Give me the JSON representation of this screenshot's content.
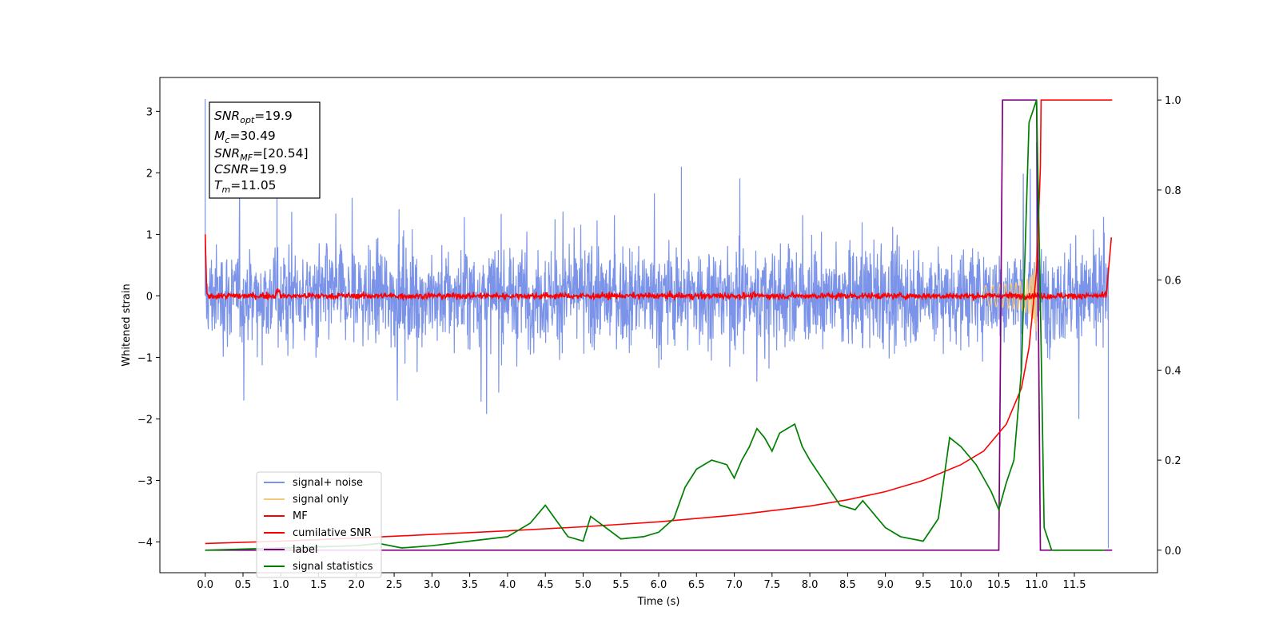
{
  "chart_data": {
    "type": "line",
    "xlabel": "Time (s)",
    "ylabel": "Whitened strain",
    "xlim": [
      -0.6,
      12.6
    ],
    "ylim_left": [
      -4.5,
      3.55
    ],
    "ylim_right": [
      -0.05,
      1.05
    ],
    "x_ticks": [
      "0.0",
      "0.5",
      "1.0",
      "1.5",
      "2.0",
      "2.5",
      "3.0",
      "3.5",
      "4.0",
      "4.5",
      "5.0",
      "5.5",
      "6.0",
      "6.5",
      "7.0",
      "7.5",
      "8.0",
      "8.5",
      "9.0",
      "9.5",
      "10.0",
      "10.5",
      "11.0",
      "11.5"
    ],
    "y_ticks_left": [
      "3",
      "2",
      "1",
      "0",
      "−1",
      "−2",
      "−3",
      "−4"
    ],
    "y_ticks_right": [
      "1.0",
      "0.8",
      "0.6",
      "0.4",
      "0.2",
      "0.0"
    ],
    "legend_position": "lower-left",
    "annotation": {
      "snr_opt": {
        "symbol": "SNR",
        "sub": "opt",
        "value": "=19.9"
      },
      "mc": {
        "symbol": "M",
        "sub": "c",
        "value": "=30.49"
      },
      "snr_mf": {
        "symbol": "SNR",
        "sub": "MF",
        "value": "=[20.54]"
      },
      "csnr": {
        "symbol": "CSNR",
        "sub": "",
        "value": "=19.9"
      },
      "tm": {
        "symbol": "T",
        "sub": "m",
        "value": "=11.05"
      }
    },
    "series": [
      {
        "name": "signal+ noise",
        "axis": "left",
        "color": "#7b93e8",
        "style": "noise band",
        "typical_range": [
          -1.3,
          1.3
        ],
        "peaks": [
          [
            0.0,
            3.2
          ],
          [
            0.95,
            1.9
          ],
          [
            6.3,
            2.1
          ],
          [
            11.0,
            2.5
          ],
          [
            11.95,
            -4.1
          ]
        ]
      },
      {
        "name": "signal only",
        "axis": "left",
        "color": "#f5c97a",
        "style": "chirp",
        "chirp_start": 10.3,
        "merger": 11.0,
        "peak_amplitude": 0.65
      },
      {
        "name": "MF",
        "axis": "left",
        "color": "#ff0000",
        "style": "noise near zero",
        "x": [
          0.0,
          0.02,
          0.95,
          1.0,
          11.93,
          11.99
        ],
        "y": [
          1.0,
          0.05,
          0.22,
          0.05,
          0.0,
          0.95
        ]
      },
      {
        "name": "cumilative SNR",
        "axis": "right",
        "color": "#ff0000",
        "x": [
          0.0,
          1.0,
          2.0,
          3.0,
          4.0,
          5.0,
          6.0,
          7.0,
          8.0,
          8.5,
          9.0,
          9.5,
          10.0,
          10.3,
          10.6,
          10.8,
          10.9,
          11.0,
          11.05,
          11.06,
          12.0
        ],
        "y": [
          0.015,
          0.02,
          0.027,
          0.035,
          0.043,
          0.052,
          0.063,
          0.078,
          0.098,
          0.112,
          0.13,
          0.155,
          0.19,
          0.22,
          0.28,
          0.36,
          0.45,
          0.62,
          0.85,
          1.0,
          1.0
        ]
      },
      {
        "name": "label",
        "axis": "right",
        "color": "#800080",
        "x": [
          0.0,
          10.5,
          10.55,
          11.0,
          11.05,
          12.0
        ],
        "y": [
          0.0,
          0.0,
          1.0,
          1.0,
          0.0,
          0.0
        ]
      },
      {
        "name": "signal statistics",
        "axis": "right",
        "color": "#008000",
        "x": [
          0.0,
          1.0,
          2.0,
          2.3,
          2.6,
          3.0,
          3.5,
          4.0,
          4.3,
          4.5,
          4.8,
          5.0,
          5.1,
          5.3,
          5.5,
          5.8,
          6.0,
          6.2,
          6.35,
          6.5,
          6.7,
          6.9,
          7.0,
          7.1,
          7.2,
          7.3,
          7.4,
          7.5,
          7.6,
          7.7,
          7.8,
          7.9,
          8.0,
          8.2,
          8.4,
          8.6,
          8.7,
          8.9,
          9.0,
          9.2,
          9.5,
          9.7,
          9.85,
          10.0,
          10.2,
          10.4,
          10.5,
          10.6,
          10.7,
          10.8,
          10.9,
          11.0,
          11.05,
          11.1,
          11.2,
          11.9
        ],
        "y": [
          0.0,
          0.005,
          0.01,
          0.015,
          0.005,
          0.01,
          0.02,
          0.03,
          0.06,
          0.1,
          0.03,
          0.02,
          0.075,
          0.05,
          0.025,
          0.03,
          0.04,
          0.07,
          0.14,
          0.18,
          0.2,
          0.19,
          0.16,
          0.2,
          0.23,
          0.27,
          0.25,
          0.22,
          0.26,
          0.27,
          0.28,
          0.23,
          0.2,
          0.15,
          0.1,
          0.09,
          0.11,
          0.07,
          0.05,
          0.03,
          0.02,
          0.07,
          0.25,
          0.23,
          0.19,
          0.13,
          0.09,
          0.15,
          0.2,
          0.4,
          0.95,
          1.0,
          0.55,
          0.05,
          0.0,
          0.0
        ]
      }
    ]
  }
}
